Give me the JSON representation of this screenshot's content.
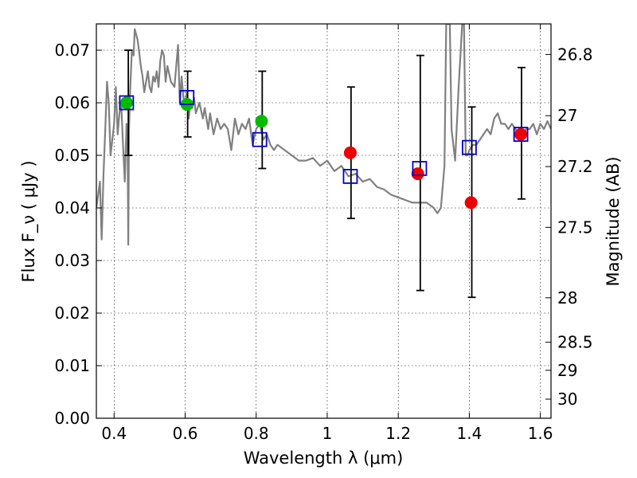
{
  "chart_data": {
    "type": "scatter",
    "title": "",
    "xlabel": "Wavelength  λ (μm)",
    "ylabel": "Flux  F_ν  ( μJy )",
    "ylabel_right": "Magnitude (AB)",
    "xlim": [
      0.35,
      1.63
    ],
    "ylim": [
      0.0,
      0.075
    ],
    "grid": true,
    "x_ticks": [
      0.4,
      0.6,
      0.8,
      1.0,
      1.2,
      1.4,
      1.6
    ],
    "x_tick_labels": [
      "0.4",
      "0.6",
      "0.8",
      "1",
      "1.2",
      "1.4",
      "1.6"
    ],
    "y_ticks": [
      0.0,
      0.01,
      0.02,
      0.03,
      0.04,
      0.05,
      0.06,
      0.07
    ],
    "y_tick_labels": [
      "0.00",
      "0.01",
      "0.02",
      "0.03",
      "0.04",
      "0.05",
      "0.06",
      "0.07"
    ],
    "right_ticks": [
      {
        "label": "26.8",
        "mag": 26.8
      },
      {
        "label": "27",
        "mag": 27.0
      },
      {
        "label": "27.2",
        "mag": 27.2
      },
      {
        "label": "27.5",
        "mag": 27.5
      },
      {
        "label": "28",
        "mag": 28.0
      },
      {
        "label": "28.5",
        "mag": 28.5
      },
      {
        "label": "29",
        "mag": 29.0
      },
      {
        "label": "30",
        "mag": 30.0
      }
    ],
    "colors": {
      "spectrum": "#808080",
      "green": "#00bb00",
      "red": "#ee0000",
      "model_box": "#0000cc",
      "errorbar": "#000000"
    },
    "spectrum": {
      "x": [
        0.35,
        0.36,
        0.365,
        0.37,
        0.375,
        0.38,
        0.385,
        0.39,
        0.395,
        0.4,
        0.405,
        0.41,
        0.415,
        0.42,
        0.425,
        0.43,
        0.435,
        0.438,
        0.44,
        0.442,
        0.445,
        0.45,
        0.455,
        0.458,
        0.462,
        0.466,
        0.47,
        0.475,
        0.48,
        0.485,
        0.49,
        0.495,
        0.5,
        0.505,
        0.51,
        0.515,
        0.52,
        0.525,
        0.53,
        0.535,
        0.54,
        0.545,
        0.55,
        0.56,
        0.57,
        0.58,
        0.585,
        0.59,
        0.595,
        0.6,
        0.605,
        0.61,
        0.615,
        0.62,
        0.625,
        0.63,
        0.64,
        0.65,
        0.655,
        0.66,
        0.665,
        0.67,
        0.68,
        0.69,
        0.7,
        0.71,
        0.72,
        0.73,
        0.74,
        0.75,
        0.76,
        0.77,
        0.78,
        0.79,
        0.8,
        0.81,
        0.82,
        0.83,
        0.84,
        0.85,
        0.86,
        0.88,
        0.9,
        0.92,
        0.94,
        0.96,
        0.98,
        1.0,
        1.02,
        1.04,
        1.06,
        1.08,
        1.1,
        1.12,
        1.14,
        1.16,
        1.18,
        1.2,
        1.22,
        1.24,
        1.26,
        1.28,
        1.3,
        1.31,
        1.32,
        1.33,
        1.335,
        1.34,
        1.345,
        1.35,
        1.36,
        1.37,
        1.38,
        1.385,
        1.39,
        1.395,
        1.4,
        1.41,
        1.42,
        1.43,
        1.44,
        1.45,
        1.46,
        1.47,
        1.48,
        1.49,
        1.5,
        1.51,
        1.52,
        1.53,
        1.54,
        1.55,
        1.56,
        1.57,
        1.58,
        1.59,
        1.6,
        1.61,
        1.62,
        1.63
      ],
      "y": [
        0.04,
        0.045,
        0.034,
        0.046,
        0.055,
        0.064,
        0.06,
        0.05,
        0.053,
        0.056,
        0.063,
        0.054,
        0.058,
        0.06,
        0.052,
        0.045,
        0.056,
        0.05,
        0.033,
        0.055,
        0.062,
        0.07,
        0.069,
        0.074,
        0.073,
        0.072,
        0.07,
        0.067,
        0.065,
        0.062,
        0.064,
        0.066,
        0.063,
        0.062,
        0.065,
        0.064,
        0.066,
        0.063,
        0.068,
        0.07,
        0.069,
        0.064,
        0.067,
        0.064,
        0.063,
        0.071,
        0.06,
        0.065,
        0.061,
        0.06,
        0.062,
        0.057,
        0.06,
        0.059,
        0.061,
        0.058,
        0.06,
        0.057,
        0.059,
        0.057,
        0.055,
        0.058,
        0.054,
        0.057,
        0.055,
        0.056,
        0.055,
        0.051,
        0.057,
        0.054,
        0.056,
        0.055,
        0.057,
        0.052,
        0.055,
        0.056,
        0.053,
        0.054,
        0.052,
        0.051,
        0.052,
        0.051,
        0.05,
        0.049,
        0.049,
        0.0495,
        0.048,
        0.049,
        0.047,
        0.048,
        0.046,
        0.0465,
        0.045,
        0.0455,
        0.044,
        0.0435,
        0.0425,
        0.042,
        0.0415,
        0.041,
        0.041,
        0.041,
        0.04,
        0.039,
        0.04,
        0.048,
        0.075,
        0.075,
        0.075,
        0.055,
        0.049,
        0.063,
        0.075,
        0.075,
        0.05,
        0.05,
        0.051,
        0.052,
        0.052,
        0.053,
        0.054,
        0.055,
        0.054,
        0.057,
        0.058,
        0.056,
        0.056,
        0.055,
        0.056,
        0.055,
        0.054,
        0.053,
        0.055,
        0.055,
        0.056,
        0.054,
        0.056,
        0.055,
        0.0565,
        0.055
      ],
      "note": ""
    },
    "green_points": [
      {
        "x": 0.435,
        "y": 0.06
      },
      {
        "x": 0.605,
        "y": 0.0597
      },
      {
        "x": 0.815,
        "y": 0.0565
      }
    ],
    "red_points": [
      {
        "x": 1.065,
        "y": 0.0505
      },
      {
        "x": 1.255,
        "y": 0.0465
      },
      {
        "x": 1.405,
        "y": 0.041
      },
      {
        "x": 1.545,
        "y": 0.054
      }
    ],
    "model_boxes": [
      {
        "x": 0.435,
        "y": 0.06
      },
      {
        "x": 0.605,
        "y": 0.061
      },
      {
        "x": 0.81,
        "y": 0.053
      },
      {
        "x": 1.065,
        "y": 0.046
      },
      {
        "x": 1.26,
        "y": 0.0475
      },
      {
        "x": 1.4,
        "y": 0.0515
      },
      {
        "x": 1.545,
        "y": 0.054
      }
    ],
    "errorbars": [
      {
        "x": 0.44,
        "y_low": 0.05,
        "y_high": 0.07
      },
      {
        "x": 0.607,
        "y_low": 0.0535,
        "y_high": 0.066
      },
      {
        "x": 0.817,
        "y_low": 0.0475,
        "y_high": 0.066
      },
      {
        "x": 1.067,
        "y_low": 0.038,
        "y_high": 0.063
      },
      {
        "x": 1.262,
        "y_low": 0.0243,
        "y_high": 0.069
      },
      {
        "x": 1.407,
        "y_low": 0.023,
        "y_high": 0.0592
      },
      {
        "x": 1.547,
        "y_low": 0.0417,
        "y_high": 0.0667
      }
    ]
  }
}
